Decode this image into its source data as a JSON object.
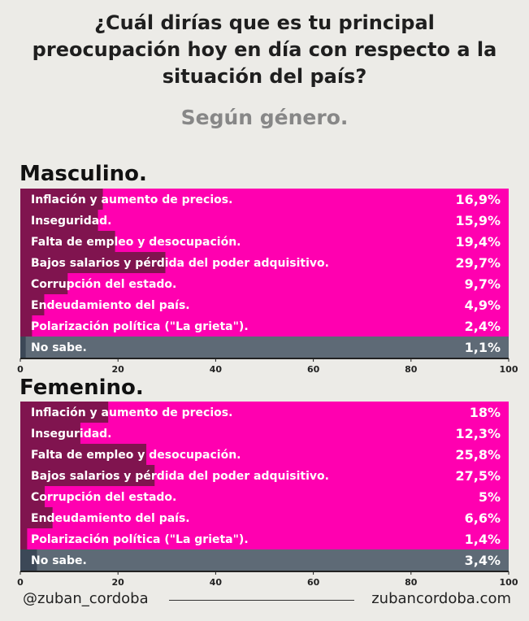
{
  "header": {
    "title_lines": [
      "¿Cuál dirías que es tu principal",
      "preocupación hoy en día con respecto a la",
      "situación del país?"
    ],
    "subtitle": "Según género."
  },
  "colors": {
    "background": "#ecebe7",
    "bar_magenta": "#ff00b0",
    "bar_fill_dark": "#80144f",
    "bar_grey": "#5e6a76",
    "bar_grey_fill": "#3c4857"
  },
  "chart_data": [
    {
      "type": "bar",
      "orientation": "horizontal",
      "title": "Masculino.",
      "xlim": [
        0,
        100
      ],
      "xticks": [
        "0",
        "20",
        "40",
        "60",
        "80",
        "100"
      ],
      "categories": [
        "Inflación y aumento de precios.",
        "Inseguridad.",
        "Falta de empleo y desocupación.",
        "Bajos salarios y pérdida del poder adquisitivo.",
        "Corrupción del estado.",
        "Endeudamiento del país.",
        "Polarización política (\"La grieta\").",
        "No sabe."
      ],
      "values": [
        16.9,
        15.9,
        19.4,
        29.7,
        9.7,
        4.9,
        2.4,
        1.1
      ],
      "value_labels": [
        "16,9%",
        "15,9%",
        "19,4%",
        "29,7%",
        "9,7%",
        "4,9%",
        "2,4%",
        "1,1%"
      ]
    },
    {
      "type": "bar",
      "orientation": "horizontal",
      "title": "Femenino.",
      "xlim": [
        0,
        100
      ],
      "xticks": [
        "0",
        "20",
        "40",
        "60",
        "80",
        "100"
      ],
      "categories": [
        "Inflación y aumento de precios.",
        "Inseguridad.",
        "Falta de empleo y desocupación.",
        "Bajos salarios y pérdida del poder adquisitivo.",
        "Corrupción del estado.",
        "Endeudamiento del país.",
        "Polarización política (\"La grieta\").",
        "No sabe."
      ],
      "values": [
        18,
        12.3,
        25.8,
        27.5,
        5,
        6.6,
        1.4,
        3.4
      ],
      "value_labels": [
        "18%",
        "12,3%",
        "25,8%",
        "27,5%",
        "5%",
        "6,6%",
        "1,4%",
        "3,4%"
      ]
    }
  ],
  "footer": {
    "handle": "@zuban_cordoba",
    "website": "zubancordoba.com"
  }
}
